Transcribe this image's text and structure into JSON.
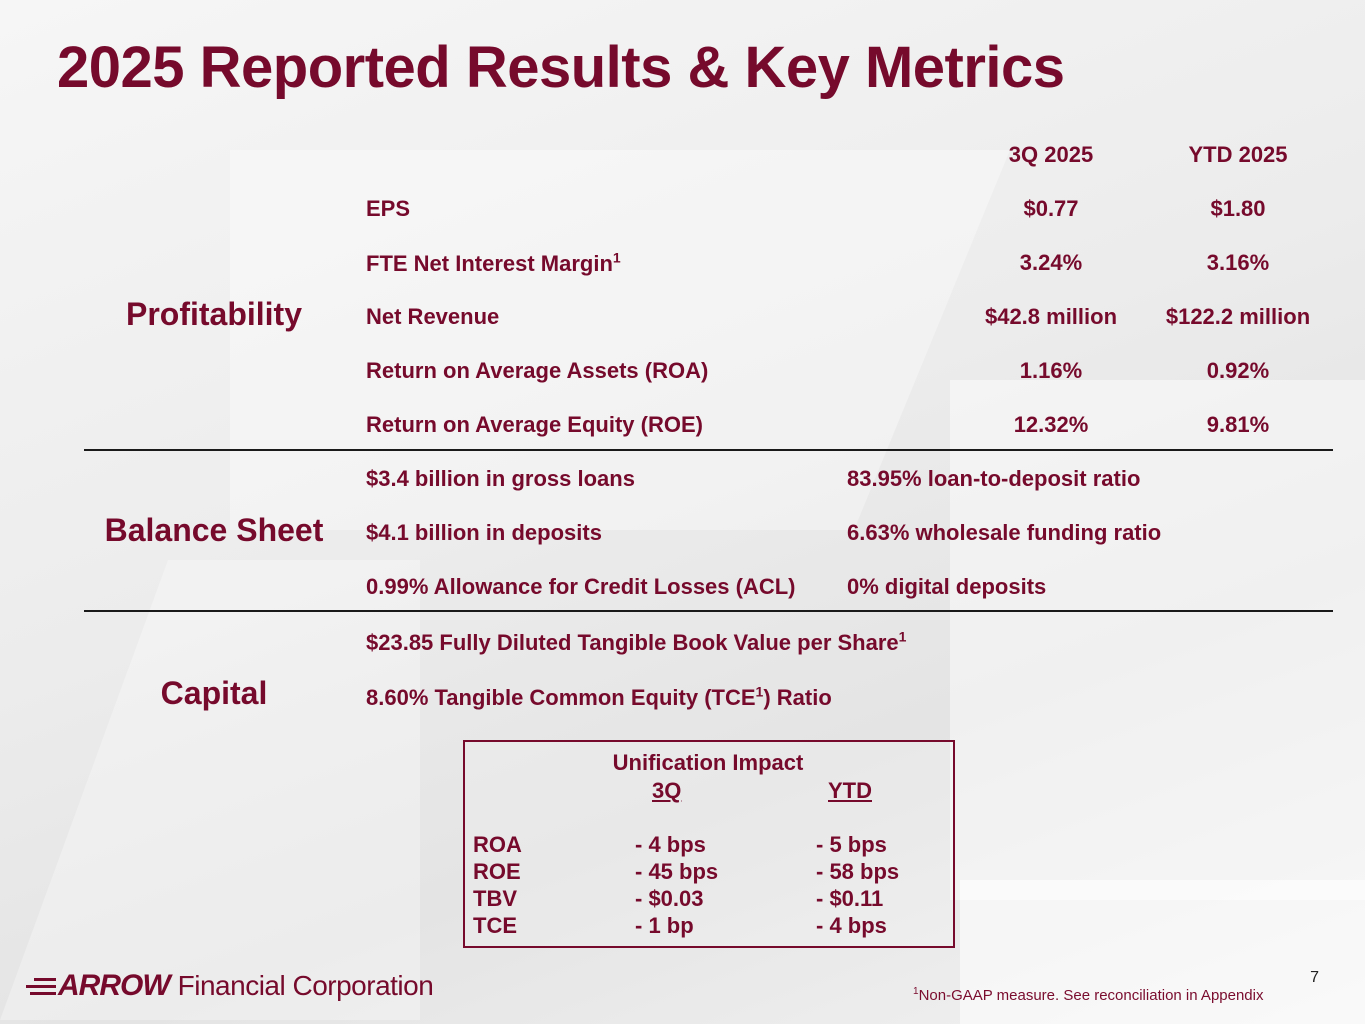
{
  "title": "2025 Reported Results & Key Metrics",
  "columns": {
    "q3": "3Q 2025",
    "ytd": "YTD 2025"
  },
  "sections": {
    "profitability": "Profitability",
    "balance": "Balance Sheet",
    "capital": "Capital"
  },
  "profitability": [
    {
      "label": "EPS",
      "sup": "",
      "q3": "$0.77",
      "ytd": "$1.80"
    },
    {
      "label": "FTE Net Interest Margin",
      "sup": "1",
      "q3": "3.24%",
      "ytd": "3.16%"
    },
    {
      "label": "Net Revenue",
      "sup": "",
      "q3": "$42.8 million",
      "ytd": "$122.2 million"
    },
    {
      "label": "Return on Average Assets (ROA)",
      "sup": "",
      "q3": "1.16%",
      "ytd": "0.92%"
    },
    {
      "label": "Return on Average Equity (ROE)",
      "sup": "",
      "q3": "12.32%",
      "ytd": "9.81%"
    }
  ],
  "balance": [
    {
      "left": "$3.4 billion in gross loans",
      "right": "83.95% loan-to-deposit ratio"
    },
    {
      "left": "$4.1 billion in deposits",
      "right": "6.63% wholesale funding ratio"
    },
    {
      "left": "0.99% Allowance for Credit Losses (ACL)",
      "right": "0% digital deposits"
    }
  ],
  "capital": {
    "tbv": "$23.85 Fully Diluted Tangible Book Value per Share",
    "tbv_sup": "1",
    "tce_pre": "8.60% Tangible Common Equity (TCE",
    "tce_sup": "1",
    "tce_post": ") Ratio"
  },
  "unification": {
    "title": "Unification Impact",
    "col_q3": "3Q",
    "col_ytd": "YTD",
    "rows": [
      {
        "metric": "ROA",
        "q3": "- 4 bps",
        "ytd": "- 5 bps"
      },
      {
        "metric": "ROE",
        "q3": "- 45 bps",
        "ytd": "- 58 bps"
      },
      {
        "metric": "TBV",
        "q3": "- $0.03",
        "ytd": "- $0.11"
      },
      {
        "metric": "TCE",
        "q3": "- 1 bp",
        "ytd": "- 4 bps"
      }
    ]
  },
  "logo": {
    "word": "ARROW",
    "sub": "Financial Corporation"
  },
  "page_number": "7",
  "footnote": {
    "sup": "1",
    "text": "Non-GAAP measure. See reconciliation in Appendix"
  }
}
